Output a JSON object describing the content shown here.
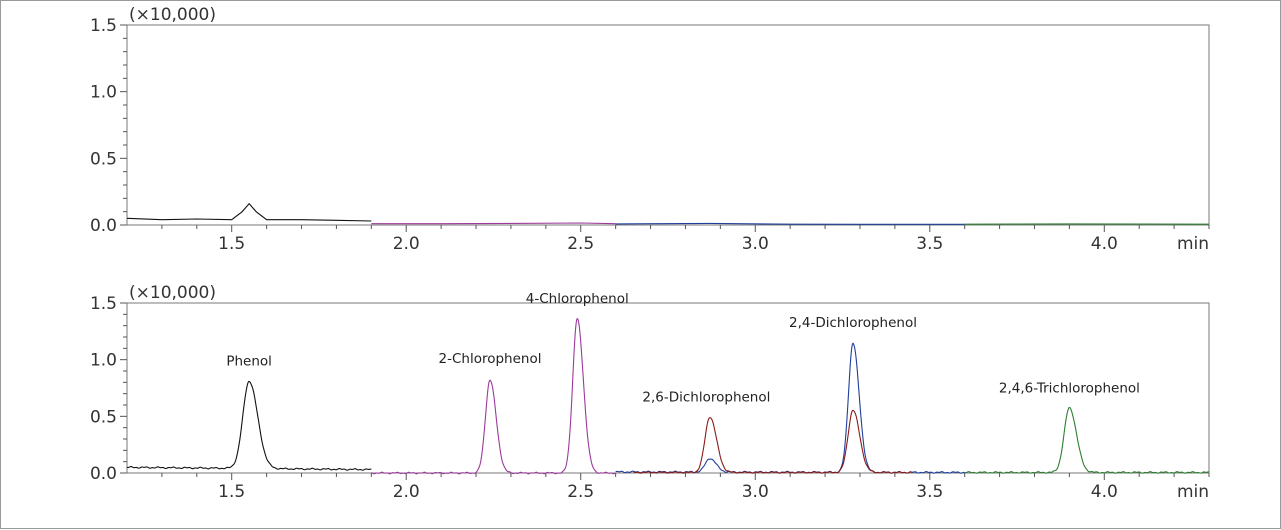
{
  "chart_data": [
    {
      "type": "line",
      "panel": "top",
      "multiplier_label": "(×10,000)",
      "x_unit_label": "min",
      "xlim": [
        1.2,
        4.3
      ],
      "ylim": [
        0.0,
        1.5
      ],
      "x_ticks": [
        "1.5",
        "2.0",
        "2.5",
        "3.0",
        "3.5",
        "4.0"
      ],
      "y_ticks": [
        "0.0",
        "0.5",
        "1.0",
        "1.5"
      ],
      "series": [
        {
          "color": "#111111",
          "x": [
            1.2,
            1.3,
            1.4,
            1.5,
            1.53,
            1.55,
            1.57,
            1.6,
            1.7,
            1.8,
            1.9
          ],
          "y": [
            0.05,
            0.04,
            0.045,
            0.04,
            0.1,
            0.16,
            0.1,
            0.04,
            0.04,
            0.035,
            0.03
          ]
        },
        {
          "color": "#9b3a9b",
          "x": [
            1.9,
            2.1,
            2.3,
            2.5,
            2.6
          ],
          "y": [
            0.01,
            0.01,
            0.012,
            0.015,
            0.01
          ]
        },
        {
          "color": "#1f3f99",
          "x": [
            2.6,
            2.87,
            3.1,
            3.3,
            3.6
          ],
          "y": [
            0.008,
            0.012,
            0.006,
            0.005,
            0.005
          ]
        },
        {
          "color": "#2e7d32",
          "x": [
            3.6,
            3.9,
            4.3
          ],
          "y": [
            0.006,
            0.008,
            0.006
          ]
        }
      ]
    },
    {
      "type": "line",
      "panel": "bottom",
      "multiplier_label": "(×10,000)",
      "x_unit_label": "min",
      "xlim": [
        1.2,
        4.3
      ],
      "ylim": [
        0.0,
        1.5
      ],
      "x_ticks": [
        "1.5",
        "2.0",
        "2.5",
        "3.0",
        "3.5",
        "4.0"
      ],
      "y_ticks": [
        "0.0",
        "0.5",
        "1.0",
        "1.5"
      ],
      "annotations": [
        {
          "text": "Phenol",
          "x": 1.55,
          "y": 0.95
        },
        {
          "text": "2-Chlorophenol",
          "x": 2.24,
          "y": 0.97
        },
        {
          "text": "4-Chlorophenol",
          "x": 2.49,
          "y": 1.5
        },
        {
          "text": "2,6-Dichlorophenol",
          "x": 2.86,
          "y": 0.63
        },
        {
          "text": "2,4-Dichlorophenol",
          "x": 3.28,
          "y": 1.29
        },
        {
          "text": "2,4,6-Trichlorophenol",
          "x": 3.9,
          "y": 0.71
        }
      ],
      "series": [
        {
          "color": "#111111",
          "peaks": [
            {
              "x": 1.55,
              "h": 0.77,
              "w": 0.018
            }
          ],
          "baseline": [
            [
              1.2,
              0.05
            ],
            [
              1.9,
              0.03
            ]
          ],
          "xrange": [
            1.2,
            1.9
          ]
        },
        {
          "color": "#9b3a9b",
          "peaks": [
            {
              "x": 2.24,
              "h": 0.82,
              "w": 0.013
            },
            {
              "x": 2.49,
              "h": 1.36,
              "w": 0.013
            }
          ],
          "baseline": [
            [
              1.9,
              0.0
            ],
            [
              2.6,
              0.0
            ]
          ],
          "xrange": [
            1.9,
            2.6
          ]
        },
        {
          "color": "#1f3f99",
          "peaks": [
            {
              "x": 2.87,
              "h": 0.12,
              "w": 0.013
            },
            {
              "x": 3.28,
              "h": 1.14,
              "w": 0.013
            }
          ],
          "baseline": [
            [
              2.6,
              0.01
            ],
            [
              3.6,
              0.005
            ]
          ],
          "xrange": [
            2.6,
            3.6
          ]
        },
        {
          "color": "#8b1a1a",
          "peaks": [
            {
              "x": 2.87,
              "h": 0.49,
              "w": 0.014
            },
            {
              "x": 3.28,
              "h": 0.55,
              "w": 0.014
            }
          ],
          "baseline": [
            [
              2.65,
              0.005
            ],
            [
              3.45,
              0.005
            ]
          ],
          "xrange": [
            2.65,
            3.45
          ]
        },
        {
          "color": "#2e7d32",
          "peaks": [
            {
              "x": 3.9,
              "h": 0.57,
              "w": 0.015
            }
          ],
          "baseline": [
            [
              3.6,
              0.005
            ],
            [
              4.3,
              0.005
            ]
          ],
          "xrange": [
            3.6,
            4.3
          ]
        }
      ]
    }
  ]
}
